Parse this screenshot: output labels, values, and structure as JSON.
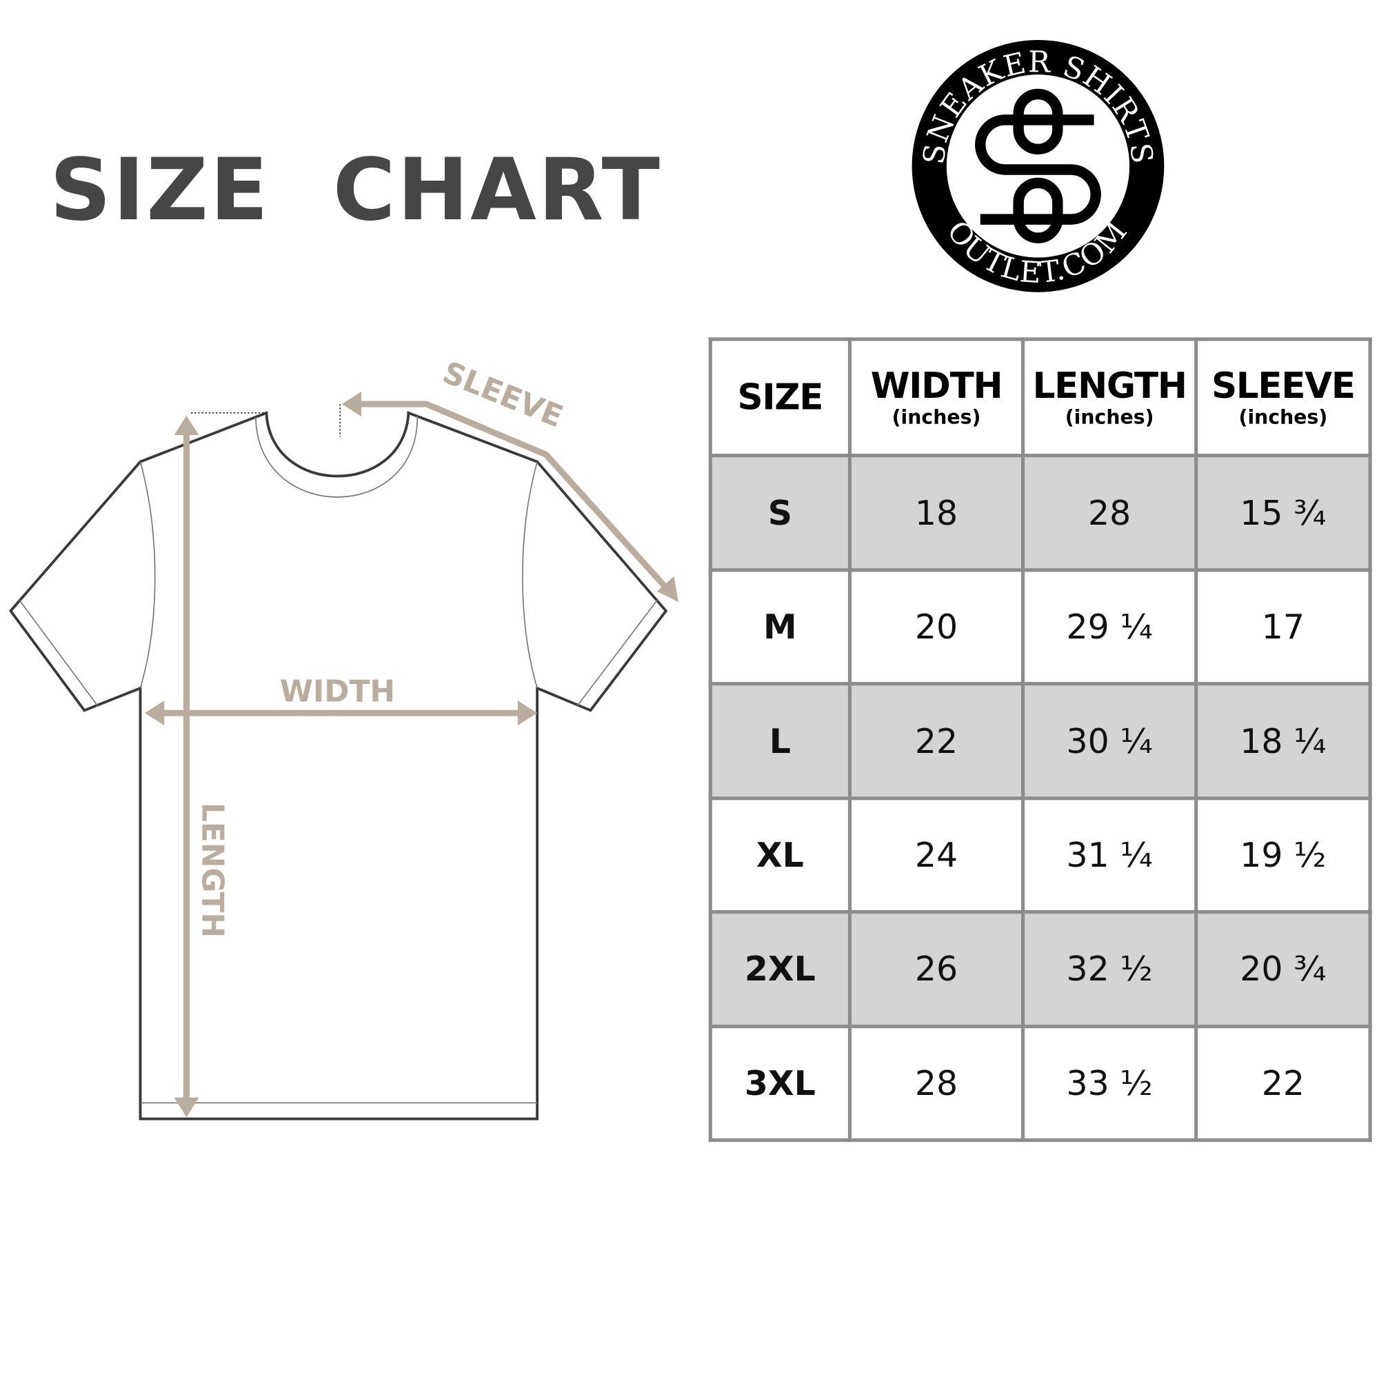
{
  "title": "SIZE  CHART",
  "logo": {
    "top_text": "SNEAKER SHIRTS",
    "bottom_text": "OUTLET.COM",
    "monogram": "SO"
  },
  "diagram": {
    "labels": {
      "width": "WIDTH",
      "length": "LENGTH",
      "sleeve": "SLEEVE"
    },
    "arrow_color": "#b9ad9f",
    "outline_color": "#3a3a3a"
  },
  "table": {
    "headers": [
      {
        "label": "SIZE",
        "unit": ""
      },
      {
        "label": "WIDTH",
        "unit": "(inches)"
      },
      {
        "label": "LENGTH",
        "unit": "(inches)"
      },
      {
        "label": "SLEEVE",
        "unit": "(inches)"
      }
    ],
    "rows": [
      [
        "S",
        "18",
        "28",
        "15 ¾"
      ],
      [
        "M",
        "20",
        "29 ¼",
        "17"
      ],
      [
        "L",
        "22",
        "30 ¼",
        "18 ¼"
      ],
      [
        "XL",
        "24",
        "31 ¼",
        "19 ½"
      ],
      [
        "2XL",
        "26",
        "32 ½",
        "20 ¾"
      ],
      [
        "3XL",
        "28",
        "33 ½",
        "22"
      ]
    ],
    "shade_color": "#d4d4d4",
    "border_color": "#8c8c8c"
  }
}
